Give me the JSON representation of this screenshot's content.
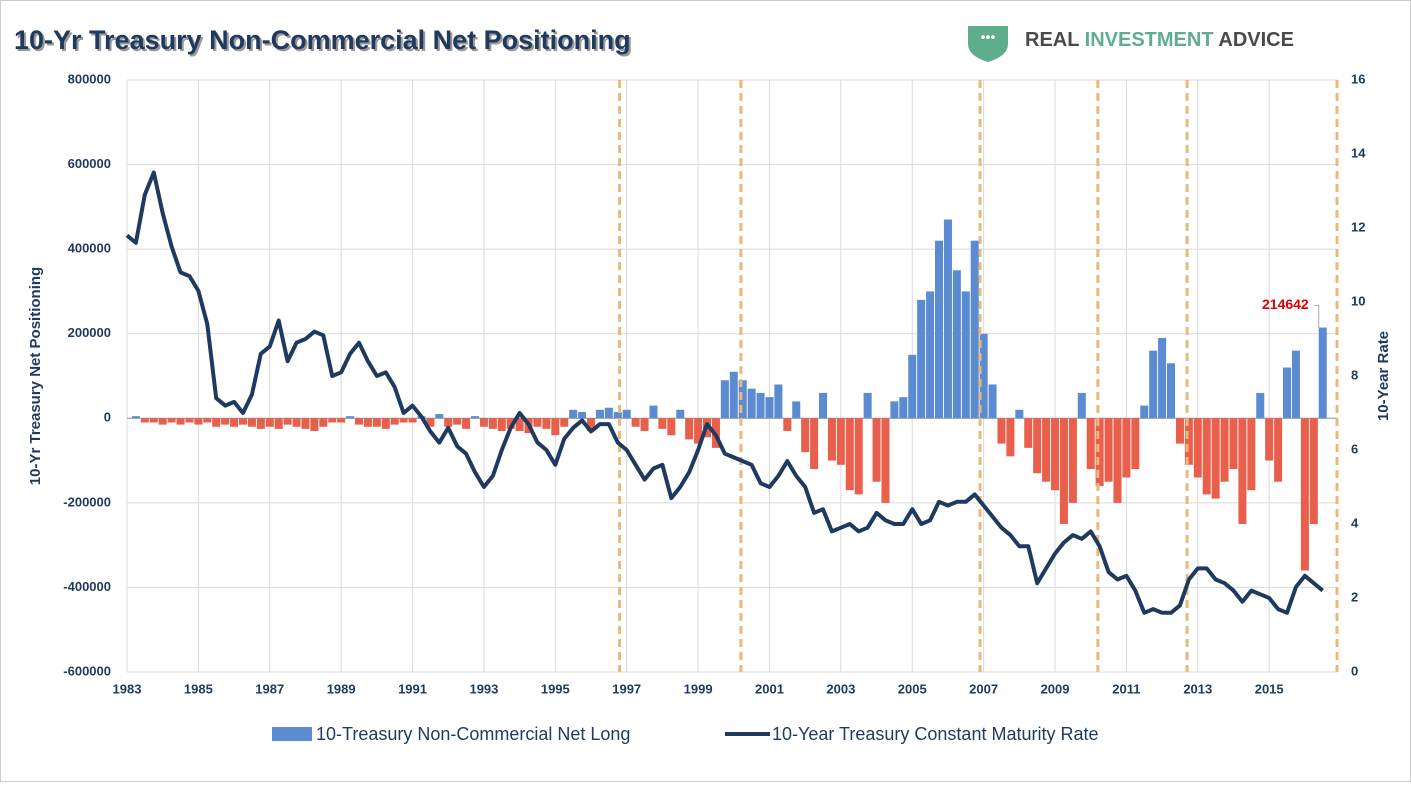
{
  "chart_data": {
    "type": "bar-line",
    "title": "10-Yr Treasury Non-Commercial Net Positioning",
    "brand": [
      "REAL",
      "INVESTMENT",
      "ADVICE"
    ],
    "y_label": "10-Yr Treasury Net Positioning",
    "y2_label": "10-Year Rate",
    "xlim": [
      1983,
      2016.9
    ],
    "xticks": [
      1983,
      1985,
      1987,
      1989,
      1991,
      1993,
      1995,
      1997,
      1999,
      2001,
      2003,
      2005,
      2007,
      2009,
      2011,
      2013,
      2015
    ],
    "ylim": [
      -600000,
      800000
    ],
    "yticks": [
      -600000,
      -400000,
      -200000,
      0,
      200000,
      400000,
      600000,
      800000
    ],
    "y2lim": [
      0,
      16
    ],
    "y2ticks": [
      0,
      2,
      4,
      6,
      8,
      10,
      12,
      14,
      16
    ],
    "grid": true,
    "vlines": [
      1996.8,
      2000.2,
      2006.9,
      2010.2,
      2012.7,
      2016.9
    ],
    "vline_color": "#e8b97a",
    "x": [
      1983,
      1983.25,
      1983.5,
      1983.75,
      1984,
      1984.25,
      1984.5,
      1984.75,
      1985,
      1985.25,
      1985.5,
      1985.75,
      1986,
      1986.25,
      1986.5,
      1986.75,
      1987,
      1987.25,
      1987.5,
      1987.75,
      1988,
      1988.25,
      1988.5,
      1988.75,
      1989,
      1989.25,
      1989.5,
      1989.75,
      1990,
      1990.25,
      1990.5,
      1990.75,
      1991,
      1991.25,
      1991.5,
      1991.75,
      1992,
      1992.25,
      1992.5,
      1992.75,
      1993,
      1993.25,
      1993.5,
      1993.75,
      1994,
      1994.25,
      1994.5,
      1994.75,
      1995,
      1995.25,
      1995.5,
      1995.75,
      1996,
      1996.25,
      1996.5,
      1996.75,
      1997,
      1997.25,
      1997.5,
      1997.75,
      1998,
      1998.25,
      1998.5,
      1998.75,
      1999,
      1999.25,
      1999.5,
      1999.75,
      2000,
      2000.25,
      2000.5,
      2000.75,
      2001,
      2001.25,
      2001.5,
      2001.75,
      2002,
      2002.25,
      2002.5,
      2002.75,
      2003,
      2003.25,
      2003.5,
      2003.75,
      2004,
      2004.25,
      2004.5,
      2004.75,
      2005,
      2005.25,
      2005.5,
      2005.75,
      2006,
      2006.25,
      2006.5,
      2006.75,
      2007,
      2007.25,
      2007.5,
      2007.75,
      2008,
      2008.25,
      2008.5,
      2008.75,
      2009,
      2009.25,
      2009.5,
      2009.75,
      2010,
      2010.25,
      2010.5,
      2010.75,
      2011,
      2011.25,
      2011.5,
      2011.75,
      2012,
      2012.25,
      2012.5,
      2012.75,
      2013,
      2013.25,
      2013.5,
      2013.75,
      2014,
      2014.25,
      2014.5,
      2014.75,
      2015,
      2015.25,
      2015.5,
      2015.75,
      2016,
      2016.25,
      2016.5
    ],
    "series": [
      {
        "name": "10-Treasury Non-Commercial Net Long",
        "color": "#5b8bd0",
        "negative_color": "#e8604c",
        "values": [
          0,
          5000,
          -10000,
          -10000,
          -15000,
          -10000,
          -15000,
          -10000,
          -15000,
          -10000,
          -20000,
          -15000,
          -20000,
          -15000,
          -20000,
          -25000,
          -20000,
          -25000,
          -15000,
          -20000,
          -25000,
          -30000,
          -20000,
          -10000,
          -10000,
          5000,
          -15000,
          -20000,
          -20000,
          -25000,
          -15000,
          -10000,
          -10000,
          5000,
          -20000,
          10000,
          -20000,
          -15000,
          -25000,
          5000,
          -20000,
          -25000,
          -30000,
          -25000,
          -30000,
          -35000,
          -20000,
          -25000,
          -40000,
          -20000,
          20000,
          15000,
          -30000,
          20000,
          25000,
          15000,
          20000,
          -20000,
          -30000,
          30000,
          -25000,
          -40000,
          20000,
          -50000,
          -60000,
          -45000,
          -70000,
          90000,
          110000,
          90000,
          70000,
          60000,
          50000,
          80000,
          -30000,
          40000,
          -80000,
          -120000,
          60000,
          -100000,
          -110000,
          -170000,
          -180000,
          60000,
          -150000,
          -200000,
          40000,
          50000,
          150000,
          280000,
          300000,
          420000,
          470000,
          350000,
          300000,
          420000,
          200000,
          80000,
          -60000,
          -90000,
          20000,
          -70000,
          -130000,
          -150000,
          -170000,
          -250000,
          -200000,
          60000,
          -120000,
          -160000,
          -150000,
          -200000,
          -140000,
          -120000,
          30000,
          160000,
          190000,
          130000,
          -60000,
          -110000,
          -140000,
          -180000,
          -190000,
          -150000,
          -120000,
          -250000,
          -170000,
          60000,
          -100000,
          -150000,
          120000,
          160000,
          -360000,
          -250000,
          214642
        ]
      },
      {
        "name": "10-Year Treasury Constant Maturity Rate",
        "color": "#1f3a5f",
        "axis": "y2",
        "values": [
          11.8,
          11.6,
          12.9,
          13.5,
          12.4,
          11.5,
          10.8,
          10.7,
          10.3,
          9.4,
          7.4,
          7.2,
          7.3,
          7.0,
          7.5,
          8.6,
          8.8,
          9.5,
          8.4,
          8.9,
          9.0,
          9.2,
          9.1,
          8.0,
          8.1,
          8.6,
          8.9,
          8.4,
          8.0,
          8.1,
          7.7,
          7.0,
          7.2,
          6.9,
          6.5,
          6.2,
          6.6,
          6.1,
          5.9,
          5.4,
          5.0,
          5.3,
          6.0,
          6.6,
          7.0,
          6.7,
          6.2,
          6.0,
          5.6,
          6.3,
          6.6,
          6.8,
          6.5,
          6.7,
          6.7,
          6.2,
          6.0,
          5.6,
          5.2,
          5.5,
          5.6,
          4.7,
          5.0,
          5.4,
          6.0,
          6.7,
          6.4,
          5.9,
          5.8,
          5.7,
          5.6,
          5.1,
          5.0,
          5.3,
          5.7,
          5.3,
          5.0,
          4.3,
          4.4,
          3.8,
          3.9,
          4.0,
          3.8,
          3.9,
          4.3,
          4.1,
          4.0,
          4.0,
          4.4,
          4.0,
          4.1,
          4.6,
          4.5,
          4.6,
          4.6,
          4.8,
          4.5,
          4.2,
          3.9,
          3.7,
          3.4,
          3.4,
          2.4,
          2.8,
          3.2,
          3.5,
          3.7,
          3.6,
          3.8,
          3.4,
          2.7,
          2.5,
          2.6,
          2.2,
          1.6,
          1.7,
          1.6,
          1.6,
          1.8,
          2.5,
          2.8,
          2.8,
          2.5,
          2.4,
          2.2,
          1.9,
          2.2,
          2.1,
          2.0,
          1.7,
          1.6,
          2.3,
          2.6,
          2.4,
          2.2
        ]
      }
    ]
  }
}
